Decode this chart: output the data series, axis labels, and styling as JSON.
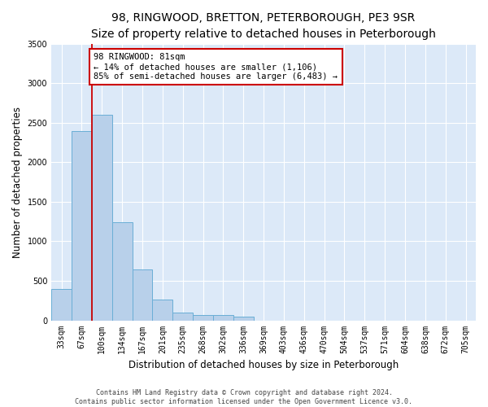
{
  "title": "98, RINGWOOD, BRETTON, PETERBOROUGH, PE3 9SR",
  "subtitle": "Size of property relative to detached houses in Peterborough",
  "xlabel": "Distribution of detached houses by size in Peterborough",
  "ylabel": "Number of detached properties",
  "footer_line1": "Contains HM Land Registry data © Crown copyright and database right 2024.",
  "footer_line2": "Contains public sector information licensed under the Open Government Licence v3.0.",
  "categories": [
    "33sqm",
    "67sqm",
    "100sqm",
    "134sqm",
    "167sqm",
    "201sqm",
    "235sqm",
    "268sqm",
    "302sqm",
    "336sqm",
    "369sqm",
    "403sqm",
    "436sqm",
    "470sqm",
    "504sqm",
    "537sqm",
    "571sqm",
    "604sqm",
    "638sqm",
    "672sqm",
    "705sqm"
  ],
  "values": [
    400,
    2400,
    2600,
    1240,
    640,
    260,
    100,
    65,
    65,
    45,
    0,
    0,
    0,
    0,
    0,
    0,
    0,
    0,
    0,
    0,
    0
  ],
  "bar_color": "#b8d0ea",
  "bar_edge_color": "#6aaed6",
  "vline_x": 1.5,
  "vline_color": "#cc0000",
  "annotation_text": "98 RINGWOOD: 81sqm\n← 14% of detached houses are smaller (1,106)\n85% of semi-detached houses are larger (6,483) →",
  "annotation_box_color": "#ffffff",
  "annotation_box_edge": "#cc0000",
  "ylim": [
    0,
    3500
  ],
  "yticks": [
    0,
    500,
    1000,
    1500,
    2000,
    2500,
    3000,
    3500
  ],
  "bg_color": "#dce9f8",
  "grid_color": "#ffffff",
  "fig_bg_color": "#ffffff",
  "title_fontsize": 10,
  "tick_fontsize": 7,
  "ylabel_fontsize": 8.5,
  "xlabel_fontsize": 8.5,
  "footer_fontsize": 6,
  "annot_fontsize": 7.5
}
